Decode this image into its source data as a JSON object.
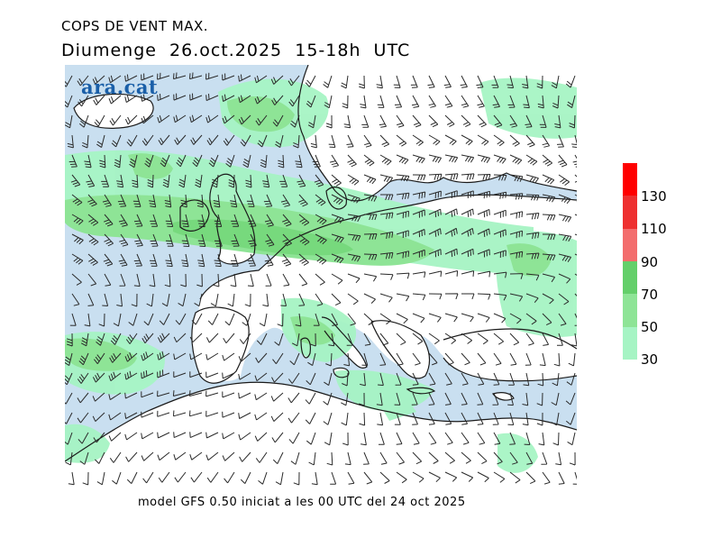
{
  "header": {
    "title": "COPS DE VENT MAX.",
    "subtitle": "Diumenge  26.oct.2025  15-18h  UTC"
  },
  "map": {
    "logo": "ara.cat",
    "colors": {
      "sea": "#c9dff0",
      "land": "#ffffff",
      "wind_30_50": "#a6f4c4",
      "wind_50_70": "#8ee496",
      "wind_70_90": "#64cf6a",
      "coast": "#1a1a1a",
      "barb": "#2a2a2a"
    }
  },
  "legend": {
    "labels": [
      "130",
      "110",
      "90",
      "70",
      "50",
      "30"
    ],
    "colors": [
      "#ff0000",
      "#ee3030",
      "#f36d6d",
      "#64cf6a",
      "#8ee496",
      "#a6f4c4"
    ]
  },
  "footer": {
    "text": "model GFS 0.50 iniciat a les 00 UTC del 24 oct 2025"
  }
}
